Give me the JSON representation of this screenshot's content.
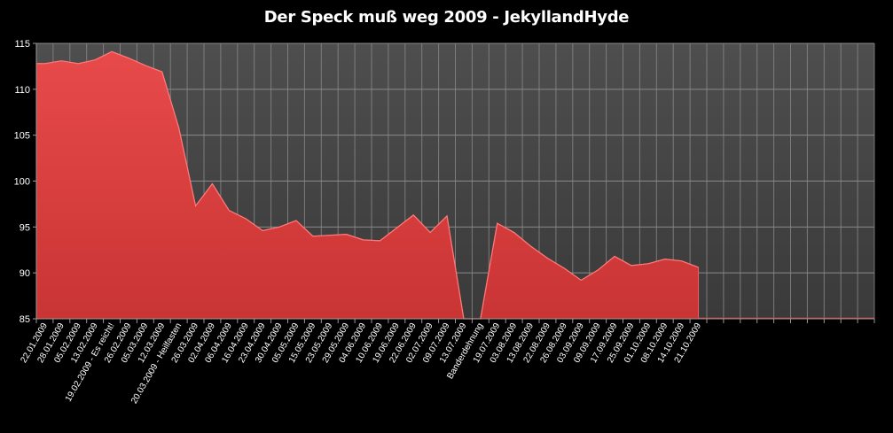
{
  "chart_data": {
    "type": "area",
    "title": "Der Speck muß weg 2009 - JekyllandHyde",
    "xlabel": "",
    "ylabel": "",
    "ylim": [
      85,
      115
    ],
    "yticks": [
      85,
      90,
      95,
      100,
      105,
      110,
      115
    ],
    "grid": true,
    "legend": "none",
    "colors": {
      "background": "#000000",
      "plot": "#4a4a4a",
      "grid": "#8a8a8a",
      "fill": "#e04444",
      "fill_dark": "#b82a2a"
    },
    "x": [
      "22.01.2009",
      "28.01.2009",
      "05.02.2009",
      "13.02.2009",
      "19.02.2009 - Es reicht!",
      "26.02.2009",
      "05.03.2009",
      "12.03.2009",
      "20.03.2009 - Heilfasten",
      "26.03.2009",
      "02.04.2009",
      "06.04.2009",
      "16.04.2009",
      "23.04.2009",
      "30.04.2009",
      "05.05.2009",
      "15.05.2009",
      "23.05.2009",
      "29.05.2009",
      "04.06.2009",
      "10.06.2009",
      "19.06.2009",
      "22.06.2009",
      "02.07.2009",
      "09.07.2009",
      "13.07.2009",
      "Banderdehnung",
      "19.07.2009",
      "03.08.2009",
      "13.08.2009",
      "22.08.2009",
      "26.08.2009",
      "03.09.2009",
      "09.09.2009",
      "17.09.2009",
      "25.09.2009",
      "01.10.2009",
      "08.10.2009",
      "14.10.2009",
      "21.10.2009"
    ],
    "values": [
      112.8,
      113.1,
      112.8,
      113.2,
      114.1,
      113.4,
      112.6,
      111.9,
      105.8,
      97.3,
      99.7,
      96.8,
      95.9,
      94.6,
      95.0,
      95.7,
      94.0,
      94.1,
      94.2,
      93.6,
      93.5,
      94.9,
      96.3,
      94.4,
      96.2,
      85.0,
      85.0,
      95.4,
      94.4,
      92.9,
      91.6,
      90.5,
      89.2,
      90.3,
      91.8,
      90.8,
      91.0,
      91.5,
      91.3,
      90.6
    ],
    "empty_slots_after": 10
  }
}
